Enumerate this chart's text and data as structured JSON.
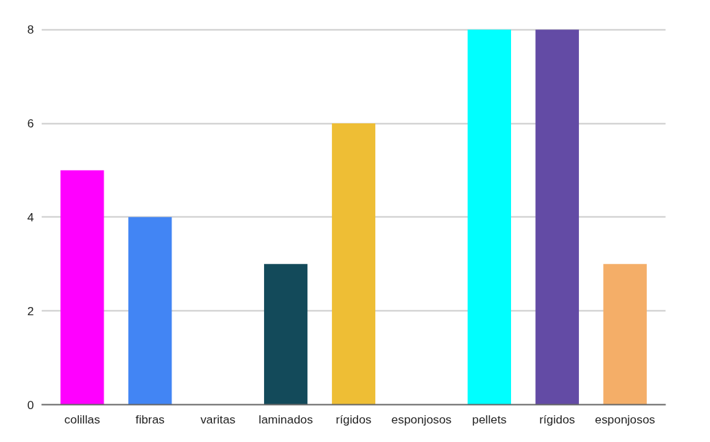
{
  "chart_data": {
    "type": "bar",
    "categories": [
      "colillas",
      "fibras",
      "varitas",
      "laminados",
      "rígidos",
      "esponjosos",
      "pellets",
      "rígidos",
      "esponjosos"
    ],
    "values": [
      5,
      4,
      0,
      3,
      6,
      0,
      8,
      8,
      3
    ],
    "colors": [
      "#ff00ff",
      "#4285f4",
      "#4285f4",
      "#134a5a",
      "#eebe35",
      "#4285f4",
      "#00ffff",
      "#634ba5",
      "#f4ae68"
    ],
    "ylim": [
      0,
      8
    ],
    "yticks": [
      0,
      2,
      4,
      6,
      8
    ],
    "grid": "y"
  }
}
